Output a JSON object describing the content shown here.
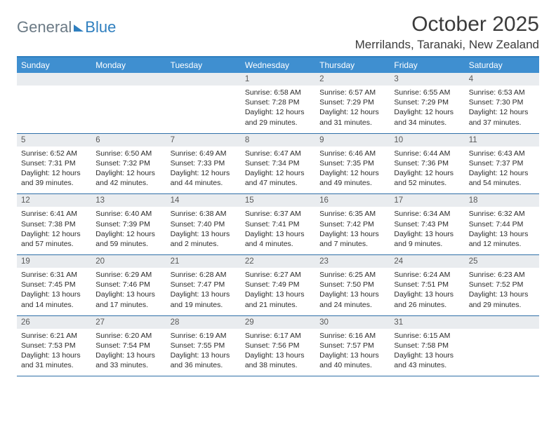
{
  "brand": {
    "part1": "General",
    "part2": "Blue"
  },
  "title": "October 2025",
  "location": "Merrilands, Taranaki, New Zealand",
  "colors": {
    "header_bar": "#3f8fd0",
    "accent_line": "#2f7fbf",
    "daynum_band": "#e9ecef",
    "week_divider": "#2f6fa8",
    "text": "#3b3b3b"
  },
  "weekdays": [
    "Sunday",
    "Monday",
    "Tuesday",
    "Wednesday",
    "Thursday",
    "Friday",
    "Saturday"
  ],
  "weeks": [
    [
      {
        "n": "",
        "sr": "",
        "ss": "",
        "d1": "",
        "d2": ""
      },
      {
        "n": "",
        "sr": "",
        "ss": "",
        "d1": "",
        "d2": ""
      },
      {
        "n": "",
        "sr": "",
        "ss": "",
        "d1": "",
        "d2": ""
      },
      {
        "n": "1",
        "sr": "Sunrise: 6:58 AM",
        "ss": "Sunset: 7:28 PM",
        "d1": "Daylight: 12 hours",
        "d2": "and 29 minutes."
      },
      {
        "n": "2",
        "sr": "Sunrise: 6:57 AM",
        "ss": "Sunset: 7:29 PM",
        "d1": "Daylight: 12 hours",
        "d2": "and 31 minutes."
      },
      {
        "n": "3",
        "sr": "Sunrise: 6:55 AM",
        "ss": "Sunset: 7:29 PM",
        "d1": "Daylight: 12 hours",
        "d2": "and 34 minutes."
      },
      {
        "n": "4",
        "sr": "Sunrise: 6:53 AM",
        "ss": "Sunset: 7:30 PM",
        "d1": "Daylight: 12 hours",
        "d2": "and 37 minutes."
      }
    ],
    [
      {
        "n": "5",
        "sr": "Sunrise: 6:52 AM",
        "ss": "Sunset: 7:31 PM",
        "d1": "Daylight: 12 hours",
        "d2": "and 39 minutes."
      },
      {
        "n": "6",
        "sr": "Sunrise: 6:50 AM",
        "ss": "Sunset: 7:32 PM",
        "d1": "Daylight: 12 hours",
        "d2": "and 42 minutes."
      },
      {
        "n": "7",
        "sr": "Sunrise: 6:49 AM",
        "ss": "Sunset: 7:33 PM",
        "d1": "Daylight: 12 hours",
        "d2": "and 44 minutes."
      },
      {
        "n": "8",
        "sr": "Sunrise: 6:47 AM",
        "ss": "Sunset: 7:34 PM",
        "d1": "Daylight: 12 hours",
        "d2": "and 47 minutes."
      },
      {
        "n": "9",
        "sr": "Sunrise: 6:46 AM",
        "ss": "Sunset: 7:35 PM",
        "d1": "Daylight: 12 hours",
        "d2": "and 49 minutes."
      },
      {
        "n": "10",
        "sr": "Sunrise: 6:44 AM",
        "ss": "Sunset: 7:36 PM",
        "d1": "Daylight: 12 hours",
        "d2": "and 52 minutes."
      },
      {
        "n": "11",
        "sr": "Sunrise: 6:43 AM",
        "ss": "Sunset: 7:37 PM",
        "d1": "Daylight: 12 hours",
        "d2": "and 54 minutes."
      }
    ],
    [
      {
        "n": "12",
        "sr": "Sunrise: 6:41 AM",
        "ss": "Sunset: 7:38 PM",
        "d1": "Daylight: 12 hours",
        "d2": "and 57 minutes."
      },
      {
        "n": "13",
        "sr": "Sunrise: 6:40 AM",
        "ss": "Sunset: 7:39 PM",
        "d1": "Daylight: 12 hours",
        "d2": "and 59 minutes."
      },
      {
        "n": "14",
        "sr": "Sunrise: 6:38 AM",
        "ss": "Sunset: 7:40 PM",
        "d1": "Daylight: 13 hours",
        "d2": "and 2 minutes."
      },
      {
        "n": "15",
        "sr": "Sunrise: 6:37 AM",
        "ss": "Sunset: 7:41 PM",
        "d1": "Daylight: 13 hours",
        "d2": "and 4 minutes."
      },
      {
        "n": "16",
        "sr": "Sunrise: 6:35 AM",
        "ss": "Sunset: 7:42 PM",
        "d1": "Daylight: 13 hours",
        "d2": "and 7 minutes."
      },
      {
        "n": "17",
        "sr": "Sunrise: 6:34 AM",
        "ss": "Sunset: 7:43 PM",
        "d1": "Daylight: 13 hours",
        "d2": "and 9 minutes."
      },
      {
        "n": "18",
        "sr": "Sunrise: 6:32 AM",
        "ss": "Sunset: 7:44 PM",
        "d1": "Daylight: 13 hours",
        "d2": "and 12 minutes."
      }
    ],
    [
      {
        "n": "19",
        "sr": "Sunrise: 6:31 AM",
        "ss": "Sunset: 7:45 PM",
        "d1": "Daylight: 13 hours",
        "d2": "and 14 minutes."
      },
      {
        "n": "20",
        "sr": "Sunrise: 6:29 AM",
        "ss": "Sunset: 7:46 PM",
        "d1": "Daylight: 13 hours",
        "d2": "and 17 minutes."
      },
      {
        "n": "21",
        "sr": "Sunrise: 6:28 AM",
        "ss": "Sunset: 7:47 PM",
        "d1": "Daylight: 13 hours",
        "d2": "and 19 minutes."
      },
      {
        "n": "22",
        "sr": "Sunrise: 6:27 AM",
        "ss": "Sunset: 7:49 PM",
        "d1": "Daylight: 13 hours",
        "d2": "and 21 minutes."
      },
      {
        "n": "23",
        "sr": "Sunrise: 6:25 AM",
        "ss": "Sunset: 7:50 PM",
        "d1": "Daylight: 13 hours",
        "d2": "and 24 minutes."
      },
      {
        "n": "24",
        "sr": "Sunrise: 6:24 AM",
        "ss": "Sunset: 7:51 PM",
        "d1": "Daylight: 13 hours",
        "d2": "and 26 minutes."
      },
      {
        "n": "25",
        "sr": "Sunrise: 6:23 AM",
        "ss": "Sunset: 7:52 PM",
        "d1": "Daylight: 13 hours",
        "d2": "and 29 minutes."
      }
    ],
    [
      {
        "n": "26",
        "sr": "Sunrise: 6:21 AM",
        "ss": "Sunset: 7:53 PM",
        "d1": "Daylight: 13 hours",
        "d2": "and 31 minutes."
      },
      {
        "n": "27",
        "sr": "Sunrise: 6:20 AM",
        "ss": "Sunset: 7:54 PM",
        "d1": "Daylight: 13 hours",
        "d2": "and 33 minutes."
      },
      {
        "n": "28",
        "sr": "Sunrise: 6:19 AM",
        "ss": "Sunset: 7:55 PM",
        "d1": "Daylight: 13 hours",
        "d2": "and 36 minutes."
      },
      {
        "n": "29",
        "sr": "Sunrise: 6:17 AM",
        "ss": "Sunset: 7:56 PM",
        "d1": "Daylight: 13 hours",
        "d2": "and 38 minutes."
      },
      {
        "n": "30",
        "sr": "Sunrise: 6:16 AM",
        "ss": "Sunset: 7:57 PM",
        "d1": "Daylight: 13 hours",
        "d2": "and 40 minutes."
      },
      {
        "n": "31",
        "sr": "Sunrise: 6:15 AM",
        "ss": "Sunset: 7:58 PM",
        "d1": "Daylight: 13 hours",
        "d2": "and 43 minutes."
      },
      {
        "n": "",
        "sr": "",
        "ss": "",
        "d1": "",
        "d2": ""
      }
    ]
  ]
}
